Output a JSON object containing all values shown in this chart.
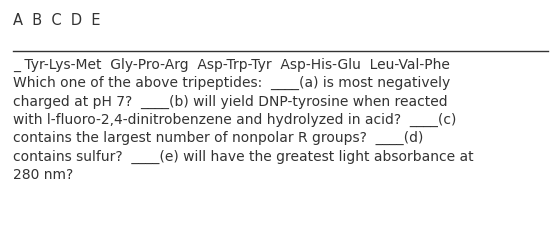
{
  "background_color": "#ffffff",
  "header": "A  B  C  D  E",
  "header_fontsize": 10.5,
  "line_color": "#333333",
  "body_text": "_ Tyr-Lys-Met  Gly-Pro-Arg  Asp-Trp-Tyr  Asp-His-Glu  Leu-Val-Phe\nWhich one of the above tripeptides:  ____(a) is most negatively\ncharged at pH 7?  ____(b) will yield DNP-tyrosine when reacted\nwith l-fluoro-2,4-dinitrobenzene and hydrolyzed in acid?  ____(c)\ncontains the largest number of nonpolar R groups?  ____(d)\ncontains sulfur?  ____(e) will have the greatest light absorbance at\n280 nm?",
  "body_fontsize": 10.0,
  "text_color": "#333333",
  "fig_width": 5.58,
  "fig_height": 2.3,
  "dpi": 100
}
